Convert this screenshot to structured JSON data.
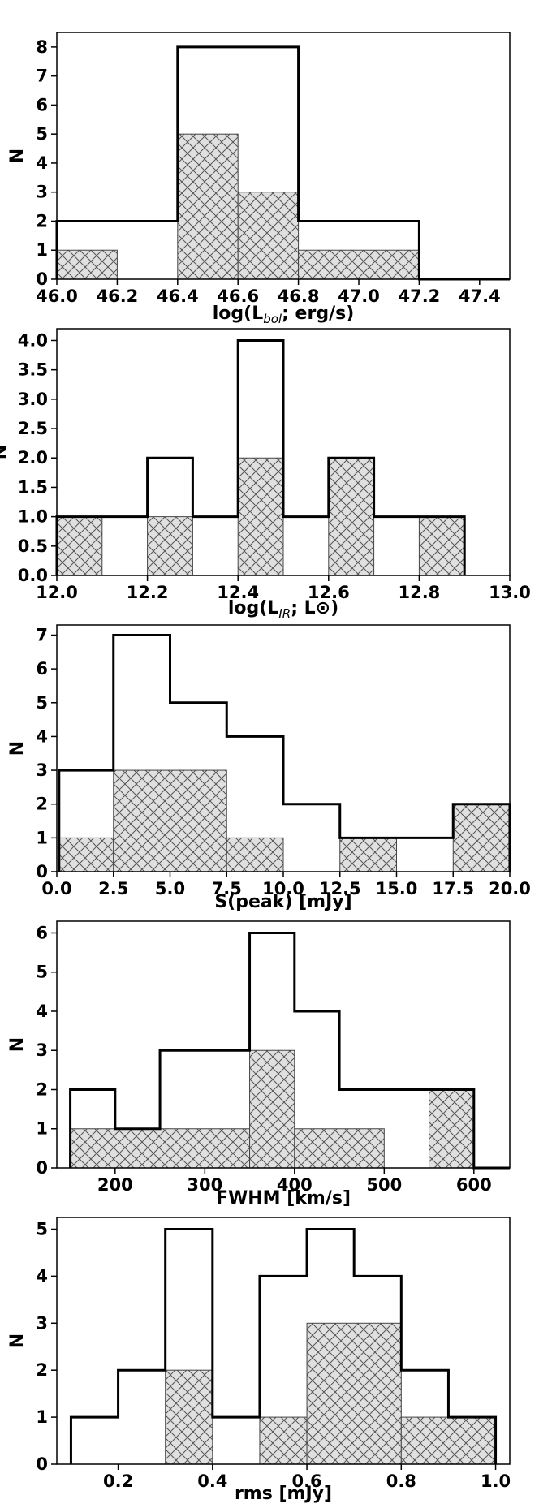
{
  "figure": {
    "hatch_fill": "#e0e0e0",
    "hatch_color": "#555555",
    "outline_color": "#000000"
  },
  "chart_data": [
    {
      "type": "bar",
      "histogram": true,
      "xlabel": "log(L_bol; erg/s)",
      "xlabel_parts": {
        "base": "log(L",
        "sub": "bol",
        "rest": "; erg/s)"
      },
      "ylabel": "N",
      "xlim": [
        46.0,
        47.5
      ],
      "ylim": [
        0,
        8.5
      ],
      "xticks": [
        46.0,
        46.2,
        46.4,
        46.6,
        46.8,
        47.0,
        47.2,
        47.4
      ],
      "xtick_labels": [
        "46.0",
        "46.2",
        "46.4",
        "46.6",
        "46.8",
        "47.0",
        "47.2",
        "47.4"
      ],
      "yticks": [
        0,
        1,
        2,
        3,
        4,
        5,
        6,
        7,
        8
      ],
      "ytick_labels": [
        "0",
        "1",
        "2",
        "3",
        "4",
        "5",
        "6",
        "7",
        "8"
      ],
      "series": [
        {
          "style": "step-outline",
          "bins": [
            [
              46.0,
              46.4,
              2
            ],
            [
              46.4,
              46.8,
              8
            ],
            [
              46.8,
              47.2,
              2
            ],
            [
              47.2,
              47.5,
              0
            ]
          ]
        },
        {
          "style": "hatched",
          "bins": [
            [
              46.0,
              46.2,
              1
            ],
            [
              46.4,
              46.6,
              5
            ],
            [
              46.6,
              46.8,
              3
            ],
            [
              46.8,
              47.2,
              1
            ]
          ]
        }
      ]
    },
    {
      "type": "bar",
      "histogram": true,
      "xlabel": "log(L_IR; L_⊙)",
      "xlabel_parts": {
        "base": "log(L",
        "sub": "IR",
        "rest": "; L⊙)"
      },
      "ylabel": "N",
      "xlim": [
        12.0,
        13.0
      ],
      "ylim": [
        0,
        4.2
      ],
      "xticks": [
        12.0,
        12.2,
        12.4,
        12.6,
        12.8,
        13.0
      ],
      "xtick_labels": [
        "12.0",
        "12.2",
        "12.4",
        "12.6",
        "12.8",
        "13.0"
      ],
      "yticks": [
        0,
        0.5,
        1.0,
        1.5,
        2.0,
        2.5,
        3.0,
        3.5,
        4.0
      ],
      "ytick_labels": [
        "0.0",
        "0.5",
        "1.0",
        "1.5",
        "2.0",
        "2.5",
        "3.0",
        "3.5",
        "4.0"
      ],
      "series": [
        {
          "style": "step-outline",
          "bins": [
            [
              12.0,
              12.2,
              1
            ],
            [
              12.2,
              12.3,
              2
            ],
            [
              12.3,
              12.4,
              1
            ],
            [
              12.4,
              12.5,
              4
            ],
            [
              12.5,
              12.6,
              1
            ],
            [
              12.6,
              12.7,
              2
            ],
            [
              12.7,
              12.9,
              1
            ]
          ]
        },
        {
          "style": "hatched",
          "bins": [
            [
              12.0,
              12.1,
              1
            ],
            [
              12.2,
              12.3,
              1
            ],
            [
              12.4,
              12.5,
              2
            ],
            [
              12.6,
              12.7,
              2
            ],
            [
              12.8,
              12.9,
              1
            ]
          ]
        }
      ]
    },
    {
      "type": "bar",
      "histogram": true,
      "xlabel": "S(peak) [mJy]",
      "ylabel": "N",
      "xlim": [
        0,
        20
      ],
      "ylim": [
        0,
        7.3
      ],
      "xticks": [
        0,
        2.5,
        5,
        7.5,
        10,
        12.5,
        15,
        17.5,
        20
      ],
      "xtick_labels": [
        "0.0",
        "2.5",
        "5.0",
        "7.5",
        "10.0",
        "12.5",
        "15.0",
        "17.5",
        "20.0"
      ],
      "yticks": [
        0,
        1,
        2,
        3,
        4,
        5,
        6,
        7
      ],
      "ytick_labels": [
        "0",
        "1",
        "2",
        "3",
        "4",
        "5",
        "6",
        "7"
      ],
      "series": [
        {
          "style": "step-outline",
          "bins": [
            [
              0.1,
              2.5,
              3
            ],
            [
              2.5,
              5,
              7
            ],
            [
              5,
              7.5,
              5
            ],
            [
              7.5,
              10,
              4
            ],
            [
              10,
              12.5,
              2
            ],
            [
              12.5,
              17.5,
              1
            ],
            [
              17.5,
              20,
              2
            ]
          ]
        },
        {
          "style": "hatched",
          "bins": [
            [
              0.1,
              2.5,
              1
            ],
            [
              2.5,
              7.5,
              3
            ],
            [
              7.5,
              10,
              1
            ],
            [
              12.5,
              15,
              1
            ],
            [
              17.5,
              20,
              2
            ]
          ]
        }
      ]
    },
    {
      "type": "bar",
      "histogram": true,
      "xlabel": "FWHM [km/s]",
      "ylabel": "N",
      "xlim": [
        135,
        640
      ],
      "ylim": [
        0,
        6.3
      ],
      "xticks": [
        200,
        300,
        400,
        500,
        600
      ],
      "xtick_labels": [
        "200",
        "300",
        "400",
        "500",
        "600"
      ],
      "yticks": [
        0,
        1,
        2,
        3,
        4,
        5,
        6
      ],
      "ytick_labels": [
        "0",
        "1",
        "2",
        "3",
        "4",
        "5",
        "6"
      ],
      "series": [
        {
          "style": "step-outline",
          "bins": [
            [
              150,
              200,
              2
            ],
            [
              200,
              250,
              1
            ],
            [
              250,
              350,
              3
            ],
            [
              350,
              400,
              6
            ],
            [
              400,
              450,
              4
            ],
            [
              450,
              600,
              2
            ],
            [
              600,
              640,
              0
            ]
          ]
        },
        {
          "style": "hatched",
          "bins": [
            [
              150,
              350,
              1
            ],
            [
              350,
              400,
              3
            ],
            [
              400,
              500,
              1
            ],
            [
              550,
              600,
              2
            ]
          ]
        }
      ]
    },
    {
      "type": "bar",
      "histogram": true,
      "xlabel": "rms [mJy]",
      "ylabel": "N",
      "xlim": [
        0.07,
        1.03
      ],
      "ylim": [
        0,
        5.25
      ],
      "xticks": [
        0.2,
        0.4,
        0.6,
        0.8,
        1.0
      ],
      "xtick_labels": [
        "0.2",
        "0.4",
        "0.6",
        "0.8",
        "1.0"
      ],
      "yticks": [
        0,
        1,
        2,
        3,
        4,
        5
      ],
      "ytick_labels": [
        "0",
        "1",
        "2",
        "3",
        "4",
        "5"
      ],
      "series": [
        {
          "style": "step-outline",
          "bins": [
            [
              0.1,
              0.2,
              1
            ],
            [
              0.2,
              0.3,
              2
            ],
            [
              0.3,
              0.4,
              5
            ],
            [
              0.4,
              0.5,
              1
            ],
            [
              0.5,
              0.6,
              4
            ],
            [
              0.6,
              0.7,
              5
            ],
            [
              0.7,
              0.8,
              4
            ],
            [
              0.8,
              0.9,
              2
            ],
            [
              0.9,
              1.0,
              1
            ]
          ]
        },
        {
          "style": "hatched",
          "bins": [
            [
              0.3,
              0.4,
              2
            ],
            [
              0.5,
              0.6,
              1
            ],
            [
              0.6,
              0.8,
              3
            ],
            [
              0.8,
              1.0,
              1
            ]
          ]
        }
      ]
    }
  ]
}
